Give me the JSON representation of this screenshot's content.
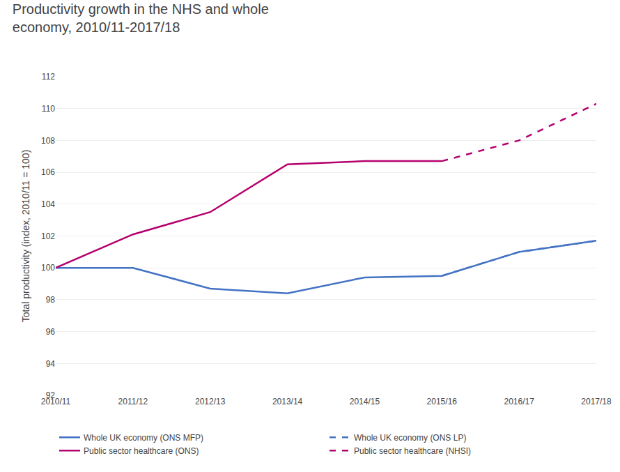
{
  "chart_data": {
    "type": "line",
    "title": "Productivity growth in the NHS and whole\neconomy, 2010/11-2017/18",
    "y_label": "Total productivity (index, 2010/11 = 100)",
    "categories": [
      "2010/11",
      "2011/12",
      "2012/13",
      "2013/14",
      "2014/15",
      "2015/16",
      "2016/17",
      "2017/18"
    ],
    "series": [
      {
        "name": "Whole UK economy (ONS MFP)",
        "color": "#4472c4",
        "line_style": "solid",
        "values": [
          100.0,
          100.0,
          98.7,
          98.4,
          99.4,
          99.5,
          101.0,
          101.7
        ]
      },
      {
        "name": "Whole UK economy (ONS LP)",
        "color": "#4472c4",
        "line_style": "dashed",
        "values": [
          null,
          null,
          null,
          null,
          null,
          99.5,
          101.0,
          101.7
        ]
      },
      {
        "name": "Public sector healthcare (ONS)",
        "color": "#b5006e",
        "line_style": "solid",
        "values": [
          100.0,
          102.1,
          103.5,
          106.5,
          106.7,
          106.7,
          null,
          null
        ]
      },
      {
        "name": "Public sector healthcare (NHSI)",
        "color": "#b5006e",
        "line_style": "dashed",
        "values": [
          null,
          null,
          null,
          null,
          null,
          106.7,
          108.0,
          110.3
        ]
      }
    ],
    "ylim": [
      92,
      112
    ],
    "yticks": [
      92,
      94,
      96,
      98,
      100,
      102,
      104,
      106,
      108,
      110,
      112
    ],
    "grid": true,
    "legend": "bottom"
  }
}
